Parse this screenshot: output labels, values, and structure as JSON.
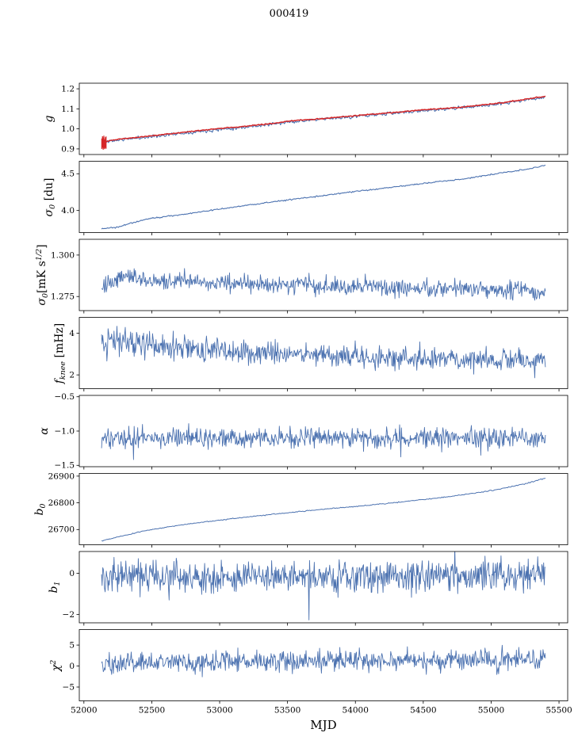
{
  "title": "000419",
  "x_axis": {
    "label": "MJD",
    "lim": [
      51966,
      55564
    ],
    "ticks": [
      {
        "v": 52000,
        "l": "52000"
      },
      {
        "v": 52500,
        "l": "52500"
      },
      {
        "v": 53000,
        "l": "53000"
      },
      {
        "v": 53500,
        "l": "53500"
      },
      {
        "v": 54000,
        "l": "54000"
      },
      {
        "v": 54500,
        "l": "54500"
      },
      {
        "v": 55000,
        "l": "55000"
      },
      {
        "v": 55500,
        "l": "55500"
      }
    ]
  },
  "colors": {
    "blue": "#4c72b0",
    "red": "#d62728",
    "axis": "#000000"
  },
  "chart_data": {
    "type": "line",
    "x_range": [
      52130,
      55400
    ],
    "panels": [
      {
        "id": "g",
        "ylabel_text": "g",
        "ylabel": [
          {
            "t": "i",
            "s": "g"
          }
        ],
        "ylim": [
          0.872,
          1.228
        ],
        "yticks": [
          {
            "v": 1.2,
            "l": "1.2"
          },
          {
            "v": 1.1,
            "l": "1.1"
          },
          {
            "v": 1.0,
            "l": "1.0"
          },
          {
            "v": 0.9,
            "l": "0.9"
          }
        ],
        "trend": [
          [
            52130,
            0.932
          ],
          [
            52200,
            0.944
          ],
          [
            52300,
            0.952
          ],
          [
            52450,
            0.962
          ],
          [
            52600,
            0.973
          ],
          [
            52800,
            0.988
          ],
          [
            53000,
            1.002
          ],
          [
            53200,
            1.014
          ],
          [
            53400,
            1.028
          ],
          [
            53550,
            1.042
          ],
          [
            53700,
            1.048
          ],
          [
            53900,
            1.06
          ],
          [
            54100,
            1.072
          ],
          [
            54300,
            1.083
          ],
          [
            54500,
            1.095
          ],
          [
            54700,
            1.104
          ],
          [
            54900,
            1.117
          ],
          [
            55100,
            1.132
          ],
          [
            55250,
            1.148
          ],
          [
            55350,
            1.158
          ],
          [
            55400,
            1.162
          ]
        ],
        "series": [
          {
            "color": "#4c72b0",
            "width": 1.1,
            "n": 450,
            "seed": 11,
            "amp": 0.004,
            "dy": -0.004
          },
          {
            "color": "#d62728",
            "width": 1.5,
            "n": 450,
            "seed": 12,
            "amp": 0.0012,
            "dy": 0
          }
        ],
        "errorbars": {
          "color": "#d62728",
          "width": 1.3,
          "items": [
            [
              52132,
              0.9,
              0.952
            ],
            [
              52137,
              0.906,
              0.963
            ],
            [
              52142,
              0.896,
              0.957
            ],
            [
              52147,
              0.903,
              0.966
            ],
            [
              52152,
              0.899,
              0.948
            ],
            [
              52158,
              0.905,
              0.958
            ],
            [
              52163,
              0.901,
              0.962
            ]
          ]
        }
      },
      {
        "id": "sigma0_du",
        "ylabel_text": "σ0 [du]",
        "ylabel": [
          {
            "t": "i",
            "s": "σ"
          },
          {
            "t": "sub",
            "s": "0"
          },
          {
            "t": "n",
            "s": " [du]"
          }
        ],
        "ylim": [
          3.7,
          4.67
        ],
        "yticks": [
          {
            "v": 4.5,
            "l": "4.5"
          },
          {
            "v": 4.0,
            "l": "4.0"
          }
        ],
        "trend": [
          [
            52130,
            3.752
          ],
          [
            52250,
            3.775
          ],
          [
            52350,
            3.83
          ],
          [
            52500,
            3.895
          ],
          [
            52650,
            3.93
          ],
          [
            52800,
            3.965
          ],
          [
            53000,
            4.02
          ],
          [
            53200,
            4.07
          ],
          [
            53400,
            4.12
          ],
          [
            53600,
            4.165
          ],
          [
            53800,
            4.21
          ],
          [
            54000,
            4.26
          ],
          [
            54200,
            4.3
          ],
          [
            54400,
            4.345
          ],
          [
            54600,
            4.39
          ],
          [
            54800,
            4.43
          ],
          [
            55000,
            4.49
          ],
          [
            55150,
            4.53
          ],
          [
            55300,
            4.575
          ],
          [
            55400,
            4.615
          ]
        ],
        "series": [
          {
            "color": "#4c72b0",
            "width": 1.1,
            "n": 450,
            "seed": 21,
            "amp": 0.0045,
            "dy": 0
          }
        ]
      },
      {
        "id": "sigma0_mks",
        "ylabel_text": "σ0 [mK s^(1/2)]",
        "ylabel": [
          {
            "t": "i",
            "s": "σ"
          },
          {
            "t": "sub",
            "s": "0"
          },
          {
            "t": "n",
            "s": "[mK s"
          },
          {
            "t": "sup",
            "s": "1/2"
          },
          {
            "t": "n",
            "s": "]"
          }
        ],
        "ylim": [
          1.2665,
          1.3095
        ],
        "yticks": [
          {
            "v": 1.3,
            "l": "1.300"
          },
          {
            "v": 1.275,
            "l": "1.275"
          }
        ],
        "trend": [
          [
            52130,
            1.2785
          ],
          [
            52200,
            1.2825
          ],
          [
            52280,
            1.2885
          ],
          [
            52350,
            1.2875
          ],
          [
            52450,
            1.285
          ],
          [
            52600,
            1.2835
          ],
          [
            52750,
            1.2845
          ],
          [
            52900,
            1.2825
          ],
          [
            53050,
            1.284
          ],
          [
            53200,
            1.2825
          ],
          [
            53400,
            1.2815
          ],
          [
            53600,
            1.2825
          ],
          [
            53800,
            1.281
          ],
          [
            54000,
            1.2815
          ],
          [
            54200,
            1.2805
          ],
          [
            54400,
            1.281
          ],
          [
            54600,
            1.2795
          ],
          [
            54800,
            1.2805
          ],
          [
            55000,
            1.2795
          ],
          [
            55150,
            1.2785
          ],
          [
            55250,
            1.281
          ],
          [
            55350,
            1.2755
          ],
          [
            55400,
            1.277
          ]
        ],
        "series": [
          {
            "color": "#4c72b0",
            "width": 0.9,
            "n": 750,
            "seed": 31,
            "amp": 0.0026,
            "dy": 0,
            "spike_prob": 0.02,
            "spike_scale": 1.8
          }
        ]
      },
      {
        "id": "f_knee",
        "ylabel_text": "f_knee [mHz]",
        "ylabel": [
          {
            "t": "i",
            "s": "f"
          },
          {
            "t": "sub",
            "s": "knee"
          },
          {
            "t": "n",
            "s": " [mHz]"
          }
        ],
        "ylim": [
          1.34,
          4.76
        ],
        "yticks": [
          {
            "v": 4,
            "l": "4"
          },
          {
            "v": 2,
            "l": "2"
          }
        ],
        "trend": [
          [
            52130,
            3.55
          ],
          [
            52250,
            3.7
          ],
          [
            52350,
            3.5
          ],
          [
            52500,
            3.38
          ],
          [
            52700,
            3.28
          ],
          [
            52900,
            3.18
          ],
          [
            53100,
            3.1
          ],
          [
            53300,
            3.05
          ],
          [
            53600,
            3.0
          ],
          [
            53900,
            2.92
          ],
          [
            54200,
            2.85
          ],
          [
            54500,
            2.78
          ],
          [
            54800,
            2.74
          ],
          [
            55100,
            2.7
          ],
          [
            55400,
            2.65
          ]
        ],
        "series": [
          {
            "color": "#4c72b0",
            "width": 0.9,
            "n": 750,
            "seed": 41,
            "amp": [
              [
                52130,
                0.42
              ],
              [
                52350,
                0.34
              ],
              [
                52800,
                0.3
              ],
              [
                53500,
                0.28
              ],
              [
                54500,
                0.26
              ],
              [
                55400,
                0.24
              ]
            ],
            "dy": 0,
            "spike_prob": 0.03,
            "spike_scale": 1.7
          }
        ]
      },
      {
        "id": "alpha",
        "ylabel_text": "α",
        "ylabel": [
          {
            "t": "i",
            "s": "α"
          }
        ],
        "ylim": [
          -1.52,
          -0.48
        ],
        "yticks": [
          {
            "v": -0.5,
            "l": "−0.5"
          },
          {
            "v": -1.0,
            "l": "−1.0"
          },
          {
            "v": -1.5,
            "l": "−1.5"
          }
        ],
        "trend": [
          [
            52130,
            -1.095
          ],
          [
            53000,
            -1.1
          ],
          [
            54000,
            -1.105
          ],
          [
            55400,
            -1.1
          ]
        ],
        "series": [
          {
            "color": "#4c72b0",
            "width": 0.9,
            "n": 750,
            "seed": 51,
            "amp": 0.07,
            "dy": 0,
            "spike_prob": 0.03,
            "spike_scale": 2.0
          }
        ]
      },
      {
        "id": "b0",
        "ylabel_text": "b0",
        "ylabel": [
          {
            "t": "i",
            "s": "b"
          },
          {
            "t": "sub",
            "s": "0"
          }
        ],
        "ylim": [
          26643,
          26910
        ],
        "yticks": [
          {
            "v": 26900,
            "l": "26900"
          },
          {
            "v": 26800,
            "l": "26800"
          },
          {
            "v": 26700,
            "l": "26700"
          }
        ],
        "trend": [
          [
            52130,
            26657
          ],
          [
            52250,
            26672
          ],
          [
            52400,
            26690
          ],
          [
            52550,
            26704
          ],
          [
            52700,
            26716
          ],
          [
            52900,
            26729
          ],
          [
            53100,
            26741
          ],
          [
            53300,
            26752
          ],
          [
            53500,
            26763
          ],
          [
            53700,
            26773
          ],
          [
            53900,
            26782
          ],
          [
            54100,
            26791
          ],
          [
            54300,
            26801
          ],
          [
            54500,
            26812
          ],
          [
            54700,
            26824
          ],
          [
            54900,
            26838
          ],
          [
            55050,
            26850
          ],
          [
            55200,
            26866
          ],
          [
            55300,
            26878
          ],
          [
            55400,
            26893
          ]
        ],
        "series": [
          {
            "color": "#4c72b0",
            "width": 1.0,
            "n": 400,
            "seed": 61,
            "amp": 0.9,
            "dy": 0
          }
        ]
      },
      {
        "id": "b1",
        "ylabel_text": "b1",
        "ylabel": [
          {
            "t": "i",
            "s": "b"
          },
          {
            "t": "sub",
            "s": "1"
          }
        ],
        "ylim": [
          -2.41,
          1.06
        ],
        "yticks": [
          {
            "v": 0,
            "l": "0"
          },
          {
            "v": -2,
            "l": "−2"
          }
        ],
        "trend": [
          [
            52130,
            -0.18
          ],
          [
            53000,
            -0.12
          ],
          [
            54000,
            -0.15
          ],
          [
            55400,
            -0.08
          ]
        ],
        "series": [
          {
            "color": "#4c72b0",
            "width": 0.9,
            "n": 750,
            "seed": 71,
            "amp": 0.36,
            "dy": 0,
            "spike_prob": 0.02,
            "spike_scale": 1.7,
            "outliers": [
              [
                53660,
                -2.27
              ]
            ]
          }
        ]
      },
      {
        "id": "chi2",
        "ylabel_text": "χ^2",
        "ylabel": [
          {
            "t": "i",
            "s": "χ"
          },
          {
            "t": "sup",
            "s": "2"
          }
        ],
        "ylim": [
          -8.3,
          8.7
        ],
        "yticks": [
          {
            "v": 5,
            "l": "5"
          },
          {
            "v": 0,
            "l": "0"
          },
          {
            "v": -5,
            "l": "−5"
          }
        ],
        "trend": [
          [
            52130,
            0.5
          ],
          [
            52500,
            0.85
          ],
          [
            53000,
            0.95
          ],
          [
            53500,
            1.05
          ],
          [
            54000,
            1.25
          ],
          [
            54500,
            1.15
          ],
          [
            55000,
            1.35
          ],
          [
            55400,
            1.55
          ]
        ],
        "series": [
          {
            "color": "#4c72b0",
            "width": 0.9,
            "n": 750,
            "seed": 81,
            "amp": 1.2,
            "dy": 0,
            "spike_prob": 0.02,
            "spike_scale": 1.6
          }
        ]
      }
    ]
  }
}
